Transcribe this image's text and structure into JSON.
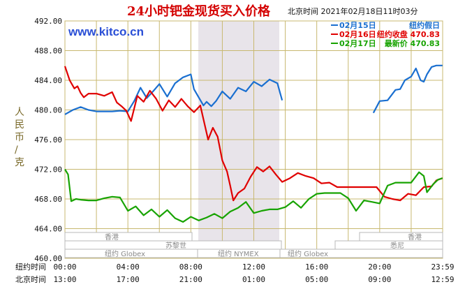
{
  "chart_data": {
    "type": "line",
    "title": "24小时钯金现货买入价格",
    "site": "www.kitco.cn",
    "timestamp": "北京时间  2021年02月18日11时03分",
    "ylabel": "人民币/克",
    "ylim": [
      460,
      492
    ],
    "yticks": [
      "492.00",
      "488.00",
      "484.00",
      "480.00",
      "476.00",
      "472.00",
      "468.00",
      "464.00",
      "460.00"
    ],
    "x_row_labels": [
      "纽约时间",
      "北京时间"
    ],
    "x_ny_ticks": [
      "00:00",
      "04:00",
      "08:00",
      "12:00",
      "16:00",
      "20:00",
      "23:59"
    ],
    "x_bj_ticks": [
      "13:00",
      "17:00",
      "21:00",
      "01:00",
      "05:00",
      "09:00",
      "12:59"
    ],
    "legend": [
      {
        "date": "02月15日",
        "text": "纽约假日",
        "color": "#1a6fd0"
      },
      {
        "date": "02月16日",
        "text": "纽约收盘 470.83",
        "color": "#e00000"
      },
      {
        "date": "02月17日",
        "text": "最新价 470.83",
        "color": "#17a300"
      }
    ],
    "markets": {
      "hongkong": "香港",
      "zurich": "苏黎世",
      "ny_globex": "纽约 Globex",
      "ny_nymex": "纽约 NYMEX",
      "sydney": "悉尼"
    },
    "series": [
      {
        "date": "02月15日",
        "color": "#1a6fd0",
        "gap": [
          13.8,
          19.6
        ],
        "points": [
          [
            0,
            479.4
          ],
          [
            0.5,
            480.0
          ],
          [
            1,
            480.4
          ],
          [
            1.5,
            480.0
          ],
          [
            2,
            479.8
          ],
          [
            2.5,
            479.8
          ],
          [
            3,
            479.8
          ],
          [
            3.5,
            479.9
          ],
          [
            4,
            479.8
          ],
          [
            4.4,
            481.2
          ],
          [
            4.8,
            483.0
          ],
          [
            5.2,
            481.6
          ],
          [
            5.6,
            482.5
          ],
          [
            6,
            483.5
          ],
          [
            6.5,
            481.8
          ],
          [
            7,
            483.6
          ],
          [
            7.5,
            484.4
          ],
          [
            8,
            484.8
          ],
          [
            8.2,
            482.8
          ],
          [
            8.5,
            481.7
          ],
          [
            8.8,
            480.6
          ],
          [
            9,
            481.1
          ],
          [
            9.3,
            480.5
          ],
          [
            9.6,
            481.2
          ],
          [
            10,
            482.5
          ],
          [
            10.5,
            481.5
          ],
          [
            11,
            483.0
          ],
          [
            11.5,
            482.5
          ],
          [
            12,
            483.8
          ],
          [
            12.5,
            483.2
          ],
          [
            13,
            484.1
          ],
          [
            13.5,
            483.6
          ],
          [
            13.8,
            481.3
          ],
          [
            19.6,
            479.6
          ],
          [
            19.8,
            480.4
          ],
          [
            20,
            481.2
          ],
          [
            20.5,
            481.3
          ],
          [
            21,
            482.7
          ],
          [
            21.3,
            482.8
          ],
          [
            21.6,
            484.0
          ],
          [
            22,
            484.5
          ],
          [
            22.3,
            485.6
          ],
          [
            22.6,
            484.0
          ],
          [
            22.8,
            483.8
          ],
          [
            23,
            484.8
          ],
          [
            23.3,
            485.8
          ],
          [
            23.6,
            486.0
          ],
          [
            23.99,
            486.0
          ]
        ]
      },
      {
        "date": "02月16日",
        "color": "#e00000",
        "points": [
          [
            0,
            485.9
          ],
          [
            0.3,
            484.0
          ],
          [
            0.6,
            482.9
          ],
          [
            0.8,
            483.2
          ],
          [
            1,
            482.3
          ],
          [
            1.2,
            481.7
          ],
          [
            1.5,
            482.2
          ],
          [
            2,
            482.2
          ],
          [
            2.5,
            481.9
          ],
          [
            3,
            482.4
          ],
          [
            3.3,
            481.0
          ],
          [
            3.6,
            480.5
          ],
          [
            3.9,
            479.9
          ],
          [
            4.2,
            478.5
          ],
          [
            4.6,
            481.9
          ],
          [
            5,
            481.1
          ],
          [
            5.4,
            482.6
          ],
          [
            5.8,
            481.5
          ],
          [
            6.2,
            479.9
          ],
          [
            6.6,
            481.3
          ],
          [
            7,
            480.4
          ],
          [
            7.4,
            481.5
          ],
          [
            7.8,
            480.5
          ],
          [
            8.2,
            479.7
          ],
          [
            8.6,
            480.6
          ],
          [
            9.1,
            476.0
          ],
          [
            9.4,
            477.6
          ],
          [
            9.7,
            476.4
          ],
          [
            10,
            473.2
          ],
          [
            10.3,
            471.7
          ],
          [
            10.5,
            469.8
          ],
          [
            10.7,
            467.8
          ],
          [
            11,
            468.8
          ],
          [
            11.4,
            469.4
          ],
          [
            11.8,
            471.0
          ],
          [
            12.2,
            472.3
          ],
          [
            12.6,
            471.7
          ],
          [
            13,
            472.4
          ],
          [
            13.4,
            471.3
          ],
          [
            13.8,
            470.3
          ],
          [
            14.3,
            470.8
          ],
          [
            14.8,
            471.5
          ],
          [
            15.3,
            471.1
          ],
          [
            15.8,
            470.8
          ],
          [
            16.3,
            470.1
          ],
          [
            16.8,
            470.2
          ],
          [
            17.3,
            469.6
          ],
          [
            17.8,
            469.6
          ],
          [
            18.3,
            469.6
          ],
          [
            18.8,
            469.6
          ],
          [
            19.3,
            469.6
          ],
          [
            19.8,
            469.6
          ],
          [
            20.3,
            468.3
          ],
          [
            20.8,
            468.0
          ],
          [
            21.3,
            467.8
          ],
          [
            21.8,
            468.7
          ],
          [
            22.3,
            468.5
          ],
          [
            22.8,
            469.6
          ],
          [
            23.3,
            469.7
          ],
          [
            23.6,
            470.5
          ],
          [
            23.99,
            470.8
          ]
        ]
      },
      {
        "date": "02月17日",
        "color": "#17a300",
        "points": [
          [
            0,
            472.0
          ],
          [
            0.2,
            471.3
          ],
          [
            0.4,
            467.7
          ],
          [
            0.7,
            468.0
          ],
          [
            1,
            467.9
          ],
          [
            1.5,
            467.8
          ],
          [
            2,
            467.8
          ],
          [
            2.5,
            468.1
          ],
          [
            3,
            468.3
          ],
          [
            3.5,
            468.2
          ],
          [
            4,
            466.4
          ],
          [
            4.5,
            467.0
          ],
          [
            5,
            465.8
          ],
          [
            5.5,
            466.6
          ],
          [
            6,
            465.6
          ],
          [
            6.5,
            466.5
          ],
          [
            7,
            465.4
          ],
          [
            7.5,
            464.9
          ],
          [
            8,
            465.6
          ],
          [
            8.5,
            465.1
          ],
          [
            9,
            465.5
          ],
          [
            9.5,
            466.0
          ],
          [
            10,
            465.4
          ],
          [
            10.5,
            466.3
          ],
          [
            11,
            466.8
          ],
          [
            11.5,
            467.6
          ],
          [
            12,
            466.1
          ],
          [
            12.5,
            466.4
          ],
          [
            13,
            466.6
          ],
          [
            13.5,
            466.6
          ],
          [
            14,
            466.9
          ],
          [
            14.5,
            467.7
          ],
          [
            15,
            466.8
          ],
          [
            15.5,
            468.0
          ],
          [
            16,
            468.7
          ],
          [
            16.5,
            468.8
          ],
          [
            17,
            468.8
          ],
          [
            17.5,
            468.8
          ],
          [
            18,
            468.1
          ],
          [
            18.5,
            466.4
          ],
          [
            19,
            467.8
          ],
          [
            19.5,
            467.6
          ],
          [
            20,
            467.4
          ],
          [
            20.5,
            469.8
          ],
          [
            21,
            470.2
          ],
          [
            21.5,
            470.2
          ],
          [
            22,
            470.2
          ],
          [
            22.5,
            471.6
          ],
          [
            22.8,
            471.1
          ],
          [
            23,
            468.9
          ],
          [
            23.4,
            470.0
          ],
          [
            23.7,
            470.6
          ],
          [
            23.99,
            470.8
          ]
        ]
      }
    ]
  }
}
